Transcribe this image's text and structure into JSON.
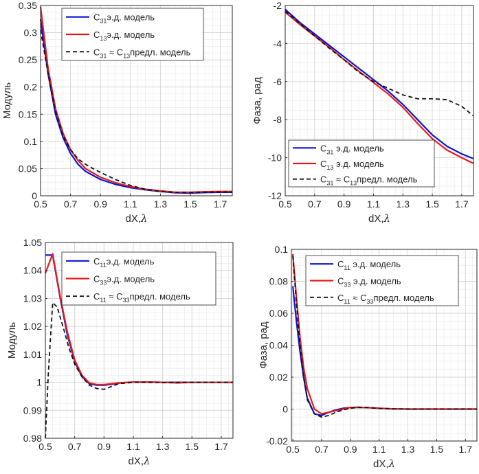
{
  "colors": {
    "blue": "#0a14d6",
    "red": "#e81818",
    "black": "#111111",
    "grid_minor": "#ececec",
    "grid_major": "#d4d4d4"
  },
  "chart_data": [
    {
      "id": "tl",
      "type": "line",
      "xlabel": "dX,",
      "xlabel_sym": "λ",
      "ylabel": "Модуль",
      "xlim": [
        0.5,
        1.78
      ],
      "ylim": [
        0,
        0.35
      ],
      "xticks": [
        0.5,
        0.7,
        0.9,
        1.1,
        1.3,
        1.5,
        1.7
      ],
      "xtick_labels": [
        "0.5",
        "0.7",
        "0.9",
        "1.1",
        "1.3",
        "1.5",
        "1.7"
      ],
      "yticks": [
        0,
        0.05,
        0.1,
        0.15,
        0.2,
        0.25,
        0.3,
        0.35
      ],
      "ytick_labels": [
        "0",
        "0.05",
        "0.1",
        "0.15",
        "0.2",
        "0.25",
        "0.3",
        "0.35"
      ],
      "legend_position": "top-right",
      "series": [
        {
          "name": "C31 э.д. модель",
          "legend": {
            "main": "C",
            "sub": "31",
            "rest": "э.д. модель"
          },
          "color": "blue",
          "dash": false,
          "x": [
            0.5,
            0.55,
            0.6,
            0.65,
            0.7,
            0.75,
            0.8,
            0.9,
            1.0,
            1.1,
            1.2,
            1.3,
            1.4,
            1.5,
            1.6,
            1.7,
            1.78
          ],
          "y": [
            0.325,
            0.225,
            0.15,
            0.107,
            0.078,
            0.058,
            0.045,
            0.03,
            0.021,
            0.015,
            0.011,
            0.008,
            0.0055,
            0.005,
            0.006,
            0.0065,
            0.0065
          ]
        },
        {
          "name": "C13 э.д. модель",
          "legend": {
            "main": "C",
            "sub": "13",
            "rest": "э.д. модель"
          },
          "color": "red",
          "dash": false,
          "x": [
            0.5,
            0.55,
            0.6,
            0.65,
            0.7,
            0.75,
            0.8,
            0.9,
            1.0,
            1.1,
            1.2,
            1.3,
            1.4,
            1.5,
            1.6,
            1.7,
            1.78
          ],
          "y": [
            0.348,
            0.235,
            0.16,
            0.115,
            0.085,
            0.065,
            0.05,
            0.034,
            0.024,
            0.017,
            0.012,
            0.009,
            0.0065,
            0.0065,
            0.0075,
            0.008,
            0.008
          ]
        },
        {
          "name": "C31 ≈ C13 предл. модель",
          "legend": {
            "main": "C",
            "sub": "31",
            "approx": "≈",
            "main2": "C",
            "sub2": "13",
            "rest": "предл. модель"
          },
          "color": "black",
          "dash": true,
          "x": [
            0.5,
            0.55,
            0.6,
            0.65,
            0.7,
            0.75,
            0.8,
            0.85,
            0.9,
            1.0,
            1.1,
            1.2,
            1.3,
            1.4,
            1.5,
            1.6,
            1.7,
            1.78
          ],
          "y": [
            0.305,
            0.225,
            0.155,
            0.11,
            0.085,
            0.068,
            0.058,
            0.05,
            0.043,
            0.03,
            0.019,
            0.012,
            0.008,
            0.0065,
            0.006,
            0.0065,
            0.007,
            0.007
          ]
        }
      ]
    },
    {
      "id": "tr",
      "type": "line",
      "xlabel": "dX,",
      "xlabel_sym": "λ",
      "ylabel": "Фаза, рад",
      "xlim": [
        0.5,
        1.78
      ],
      "ylim": [
        -12,
        -2
      ],
      "xticks": [
        0.5,
        0.7,
        0.9,
        1.1,
        1.3,
        1.5,
        1.7
      ],
      "xtick_labels": [
        "0.5",
        "0.7",
        "0.9",
        "1.1",
        "1.3",
        "1.5",
        "1.7"
      ],
      "yticks": [
        -12,
        -10,
        -8,
        -6,
        -4,
        -2
      ],
      "ytick_labels": [
        "-12",
        "-10",
        "-8",
        "-6",
        "-4",
        "-2"
      ],
      "legend_position": "bottom-right",
      "series": [
        {
          "name": "C31 э.д. модель",
          "legend": {
            "main": "C",
            "sub": "31",
            "rest": " э.д. модель"
          },
          "color": "blue",
          "dash": false,
          "x": [
            0.5,
            0.6,
            0.7,
            0.8,
            0.9,
            1.0,
            1.1,
            1.2,
            1.3,
            1.4,
            1.5,
            1.6,
            1.7,
            1.78
          ],
          "y": [
            -2.2,
            -2.9,
            -3.5,
            -4.1,
            -4.7,
            -5.3,
            -5.9,
            -6.5,
            -7.2,
            -8.0,
            -8.8,
            -9.4,
            -9.8,
            -10.05
          ]
        },
        {
          "name": "C13 э.д. модель",
          "legend": {
            "main": "C",
            "sub": "13",
            "rest": " э.д. модель"
          },
          "color": "red",
          "dash": false,
          "x": [
            0.5,
            0.6,
            0.7,
            0.8,
            0.9,
            1.0,
            1.1,
            1.2,
            1.3,
            1.4,
            1.5,
            1.6,
            1.7,
            1.78
          ],
          "y": [
            -2.35,
            -3.0,
            -3.6,
            -4.2,
            -4.85,
            -5.45,
            -6.05,
            -6.65,
            -7.35,
            -8.2,
            -9.0,
            -9.6,
            -10.0,
            -10.3
          ]
        },
        {
          "name": "C31 ≈ C13 предл. модель",
          "legend": {
            "main": "C",
            "sub": "31",
            "approx": "≈",
            "main2": "C",
            "sub2": "13",
            "rest": "предл. модель"
          },
          "color": "black",
          "dash": true,
          "x": [
            0.5,
            0.6,
            0.7,
            0.8,
            0.9,
            1.0,
            1.1,
            1.2,
            1.3,
            1.4,
            1.5,
            1.6,
            1.7,
            1.78
          ],
          "y": [
            -2.3,
            -2.95,
            -3.6,
            -4.25,
            -4.85,
            -5.5,
            -6.0,
            -6.35,
            -6.7,
            -6.9,
            -6.9,
            -6.95,
            -7.3,
            -7.8
          ]
        }
      ]
    },
    {
      "id": "bl",
      "type": "line",
      "xlabel": "dX,",
      "xlabel_sym": "λ",
      "ylabel": "Модуль",
      "xlim": [
        0.5,
        1.78
      ],
      "ylim": [
        0.98,
        1.05
      ],
      "xticks": [
        0.5,
        0.7,
        0.9,
        1.1,
        1.3,
        1.5,
        1.7
      ],
      "xtick_labels": [
        "0.5",
        "0.7",
        "0.9",
        "1.1",
        "1.3",
        "1.5",
        "1.7"
      ],
      "yticks": [
        0.98,
        0.99,
        1.0,
        1.01,
        1.02,
        1.03,
        1.04,
        1.05
      ],
      "ytick_labels": [
        "0.98",
        "0.99",
        "1",
        "1.01",
        "1.02",
        "1.03",
        "1.04",
        "1.05"
      ],
      "legend_position": "top-right",
      "series": [
        {
          "name": "C11 э.д. модель",
          "legend": {
            "main": "C",
            "sub": "11",
            "rest": "э.д. модель"
          },
          "color": "blue",
          "dash": false,
          "x": [
            0.5,
            0.55,
            0.6,
            0.65,
            0.7,
            0.75,
            0.8,
            0.85,
            0.9,
            0.95,
            1.0,
            1.1,
            1.2,
            1.3,
            1.4,
            1.5,
            1.6,
            1.7,
            1.78
          ],
          "y": [
            1.0455,
            1.0455,
            1.0305,
            1.017,
            1.0075,
            1.002,
            0.9995,
            0.999,
            0.999,
            0.9993,
            0.9997,
            1.0001,
            1.0001,
            1.0,
            1.0,
            1.0,
            1.0,
            1.0,
            1.0
          ]
        },
        {
          "name": "C33 э.д. модель",
          "legend": {
            "main": "C",
            "sub": "33",
            "rest": "э.д. модель"
          },
          "color": "red",
          "dash": false,
          "x": [
            0.5,
            0.55,
            0.6,
            0.65,
            0.7,
            0.75,
            0.8,
            0.85,
            0.9,
            0.95,
            1.0,
            1.1,
            1.2,
            1.3,
            1.4,
            1.5,
            1.6,
            1.7,
            1.78
          ],
          "y": [
            1.039,
            1.046,
            1.031,
            1.018,
            1.008,
            1.0025,
            0.9998,
            0.9992,
            0.9992,
            0.9995,
            0.9998,
            1.0001,
            1.0001,
            1.0,
            0.9998,
            1.0,
            1.0,
            1.0,
            1.0
          ]
        },
        {
          "name": "C11 ≈ C33 предл. модель",
          "legend": {
            "main": "C",
            "sub": "11",
            "approx": "≈",
            "main2": "C",
            "sub2": "33",
            "rest": "предл. модель"
          },
          "color": "black",
          "dash": true,
          "x": [
            0.5,
            0.52,
            0.55,
            0.58,
            0.62,
            0.66,
            0.7,
            0.75,
            0.8,
            0.85,
            0.9,
            0.95,
            1.0,
            1.1,
            1.2,
            1.3,
            1.4,
            1.5,
            1.6,
            1.7,
            1.78
          ],
          "y": [
            0.98,
            1.003,
            1.0285,
            1.027,
            1.02,
            1.0125,
            1.0065,
            1.002,
            0.999,
            0.9978,
            0.9975,
            0.9985,
            0.9995,
            1.0,
            1.0,
            0.9999,
            1.0,
            1.0,
            1.0,
            1.0,
            1.0
          ]
        }
      ]
    },
    {
      "id": "br",
      "type": "line",
      "xlabel": "dX,",
      "xlabel_sym": "λ",
      "ylabel": "Фаза, рад",
      "xlim": [
        0.49,
        1.78
      ],
      "ylim": [
        -0.02,
        0.1
      ],
      "xticks": [
        0.5,
        0.7,
        0.9,
        1.1,
        1.3,
        1.5,
        1.7
      ],
      "xtick_labels": [
        "0.5",
        "0.7",
        "0.9",
        "1.1",
        "1.3",
        "1.5",
        "1.7"
      ],
      "yticks": [
        -0.02,
        0,
        0.02,
        0.04,
        0.06,
        0.08,
        0.1
      ],
      "ytick_labels": [
        "-0.02",
        "0",
        "0.02",
        "0.04",
        "0.06",
        "0.08",
        "0.1"
      ],
      "legend_position": "top-right",
      "series": [
        {
          "name": "C11 э.д. модель",
          "legend": {
            "main": "C",
            "sub": "11",
            "rest": " э.д. модель"
          },
          "color": "blue",
          "dash": false,
          "x": [
            0.5,
            0.525,
            0.55,
            0.575,
            0.6,
            0.65,
            0.7,
            0.75,
            0.8,
            0.85,
            0.9,
            0.95,
            1.0,
            1.05,
            1.1,
            1.2,
            1.3,
            1.5,
            1.7,
            1.78
          ],
          "y": [
            0.077,
            0.055,
            0.036,
            0.02,
            0.007,
            -0.003,
            -0.004,
            -0.002,
            -0.0005,
            0.0005,
            0.001,
            0.001,
            0.001,
            0.0008,
            0.0005,
            0.0001,
            0.0,
            0.0,
            0.0,
            0.0
          ]
        },
        {
          "name": "C33 э.д. модель",
          "legend": {
            "main": "C",
            "sub": "33",
            "rest": " э.д. модель"
          },
          "color": "red",
          "dash": false,
          "x": [
            0.5,
            0.525,
            0.55,
            0.575,
            0.6,
            0.65,
            0.7,
            0.75,
            0.8,
            0.85,
            0.9,
            0.95,
            1.0,
            1.05,
            1.1,
            1.2,
            1.3,
            1.5,
            1.7,
            1.78
          ],
          "y": [
            0.097,
            0.07,
            0.045,
            0.026,
            0.013,
            0.0,
            -0.003,
            -0.002,
            -0.001,
            0.0,
            0.001,
            0.0012,
            0.001,
            0.0008,
            0.0005,
            0.0001,
            0.0,
            0.0,
            0.0,
            0.0
          ]
        },
        {
          "name": "C11 ≈ C33 предл. модель",
          "legend": {
            "main": "C",
            "sub": "11",
            "approx": "≈",
            "main2": "C",
            "sub2": "33",
            "rest": "предл. модель"
          },
          "color": "black",
          "dash": true,
          "x": [
            0.5,
            0.525,
            0.55,
            0.575,
            0.6,
            0.65,
            0.7,
            0.75,
            0.8,
            0.85,
            0.9,
            0.95,
            1.0,
            1.05,
            1.1,
            1.2,
            1.3,
            1.5,
            1.7,
            1.78
          ],
          "y": [
            0.096,
            0.066,
            0.04,
            0.021,
            0.006,
            -0.003,
            -0.005,
            -0.004,
            -0.002,
            -0.0005,
            0.0005,
            0.001,
            0.001,
            0.0007,
            0.0004,
            0.0001,
            0.0,
            0.0,
            0.0,
            0.0
          ]
        }
      ]
    }
  ]
}
